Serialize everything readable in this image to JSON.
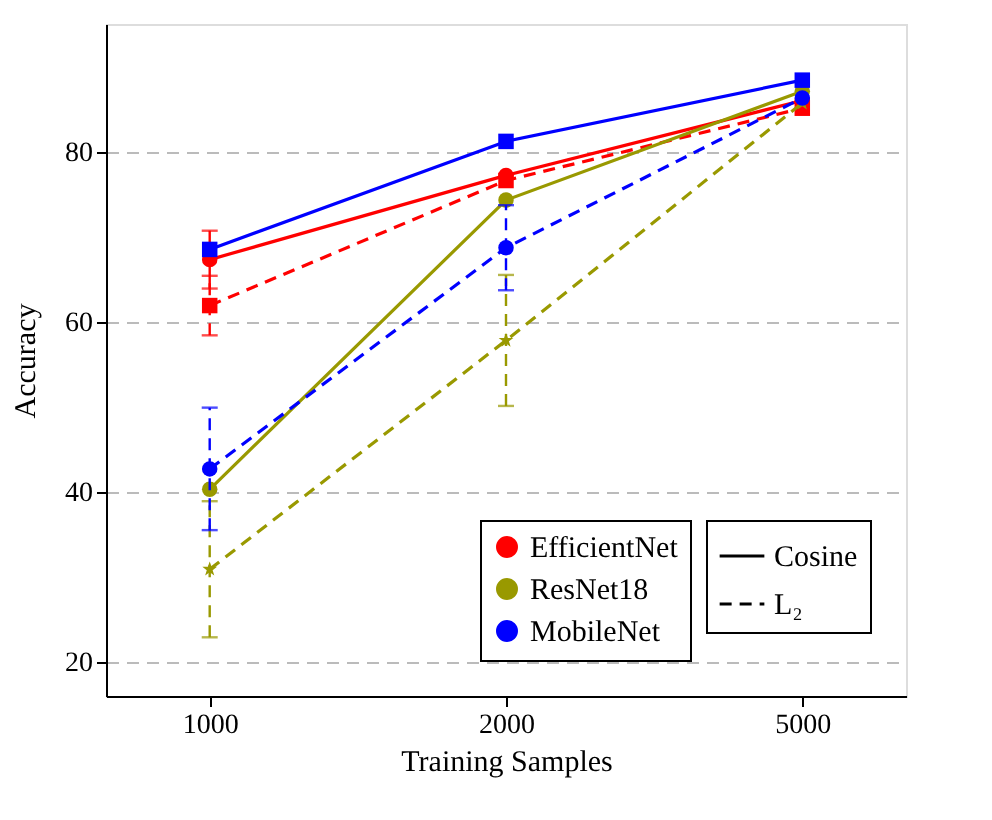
{
  "chart_data": {
    "type": "line",
    "xlabel": "Training Samples",
    "ylabel": "Accuracy",
    "categories": [
      "1000",
      "2000",
      "5000"
    ],
    "ylim": [
      16,
      95
    ],
    "yticks": [
      20,
      40,
      60,
      80
    ],
    "grid": "y",
    "legend": "bottom right",
    "annotations": [
      "Cosine",
      "L₂"
    ],
    "series": [
      {
        "name": "EfficientNet",
        "color": "#ff0000",
        "line_style": "solid",
        "marker": "circle",
        "values": [
          67.3,
          77.2,
          86.0
        ],
        "errors": [
          3.4,
          null,
          null
        ]
      },
      {
        "color": "#ff0000",
        "line_style": "dashed",
        "marker": "square",
        "values": [
          61.9,
          76.6,
          85.1
        ],
        "errors": [
          3.5,
          null,
          null
        ]
      },
      {
        "name": "ResNet18",
        "color": "#999900",
        "line_style": "solid",
        "marker": "circle",
        "values": [
          40.3,
          74.3,
          87.1
        ]
      },
      {
        "color": "#999900",
        "line_style": "dashed",
        "marker": "star",
        "values": [
          30.9,
          57.8,
          85.7
        ],
        "errors": [
          8,
          7.7,
          null
        ]
      },
      {
        "name": "MobileNet",
        "color": "#0000ff",
        "line_style": "solid",
        "marker": "square",
        "values": [
          68.5,
          81.2,
          88.4
        ]
      },
      {
        "color": "#0000ff",
        "line_style": "dashed",
        "marker": "circle",
        "values": [
          42.7,
          68.7,
          86.3
        ],
        "errors": [
          7.2,
          5,
          null
        ]
      }
    ]
  }
}
